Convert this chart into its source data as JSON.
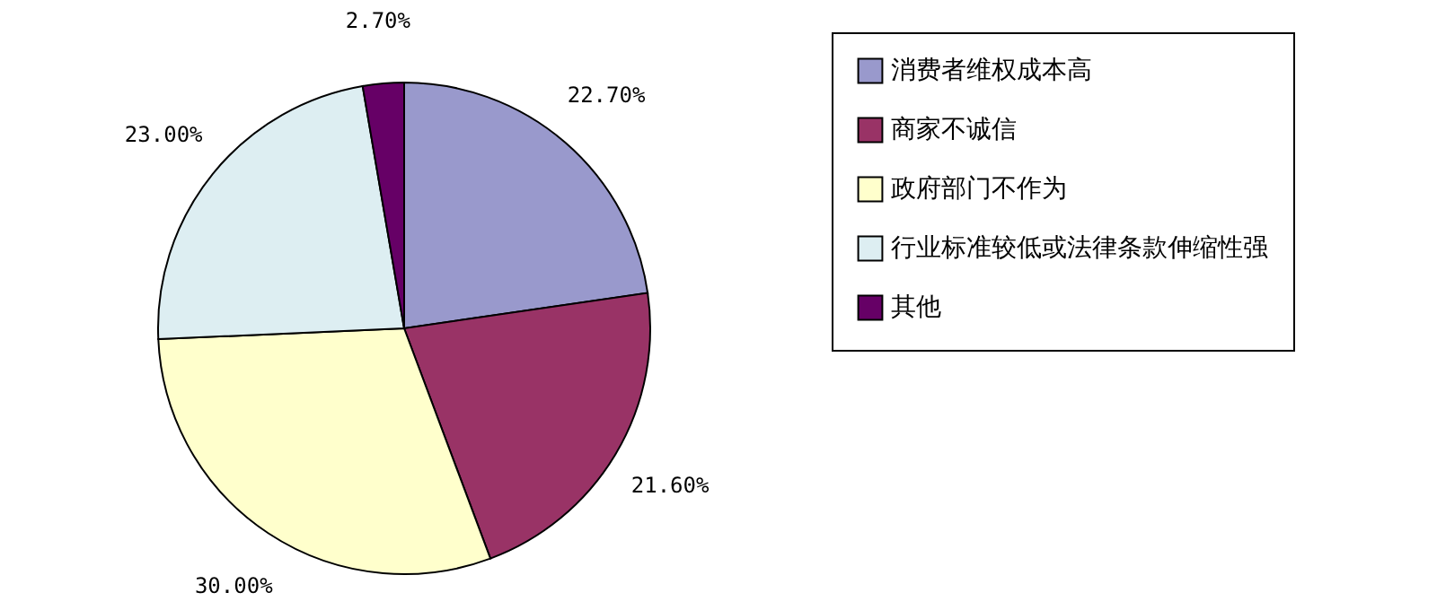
{
  "chart_data": {
    "type": "pie",
    "categories": [
      "消费者维权成本高",
      "商家不诚信",
      "政府部门不作为",
      "行业标准较低或法律条款伸缩性强",
      "其他"
    ],
    "values": [
      22.7,
      21.6,
      30.0,
      23.0,
      2.7
    ],
    "value_labels": [
      "22.70%",
      "21.60%",
      "30.00%",
      "23.00%",
      "2.70%"
    ],
    "colors": [
      "#9999cc",
      "#993366",
      "#ffffcc",
      "#ddeef2",
      "#660066"
    ],
    "legend": "right"
  }
}
